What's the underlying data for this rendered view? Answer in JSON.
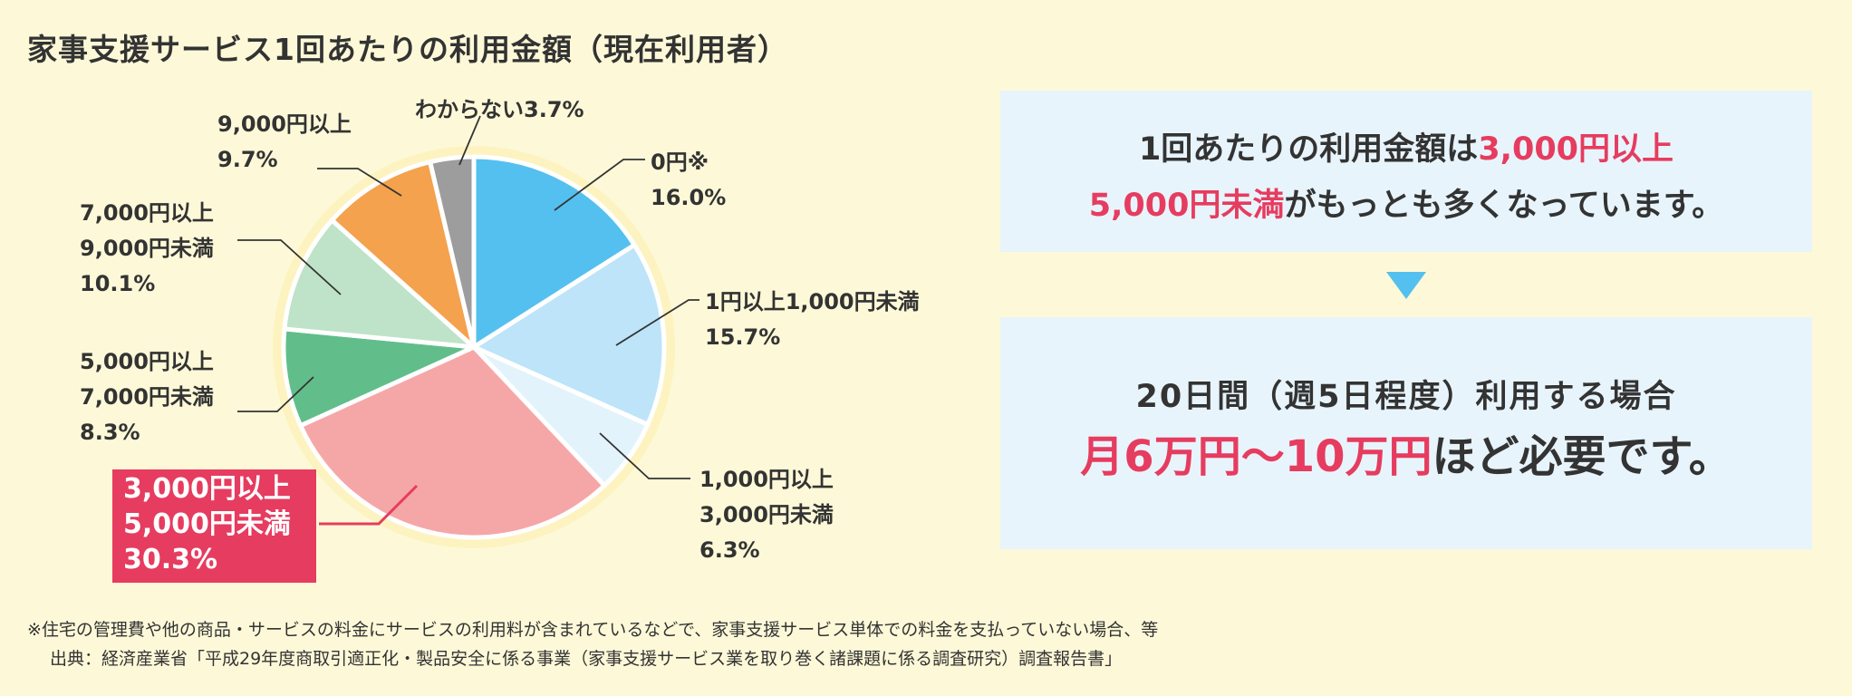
{
  "page": {
    "title": "家事支援サービス1回あたりの利用金額（現在利用者）"
  },
  "chart_data": {
    "type": "pie",
    "title": "家事支援サービス1回あたりの利用金額（現在利用者）",
    "start_angle_deg": 0,
    "direction": "clockwise",
    "slices": [
      {
        "label_lines": [
          "0円※",
          "16.0%"
        ],
        "value": 16.0,
        "color": "#54c0ef"
      },
      {
        "label_lines": [
          "1円以上1,000円未満",
          "15.7%"
        ],
        "value": 15.7,
        "color": "#bde4f8"
      },
      {
        "label_lines": [
          "1,000円以上",
          "3,000円未満",
          "6.3%"
        ],
        "value": 6.3,
        "color": "#e3f3fc"
      },
      {
        "label_lines": [
          "3,000円以上",
          "5,000円未満",
          "30.3%"
        ],
        "value": 30.3,
        "color": "#f5a7a7",
        "highlight": true
      },
      {
        "label_lines": [
          "5,000円以上",
          "7,000円未満",
          "8.3%"
        ],
        "value": 8.3,
        "color": "#61be8a"
      },
      {
        "label_lines": [
          "7,000円以上",
          "9,000円未満",
          "10.1%"
        ],
        "value": 10.1,
        "color": "#bfe3c8"
      },
      {
        "label_lines": [
          "9,000円以上",
          "9.7%"
        ],
        "value": 9.7,
        "color": "#f4a24e"
      },
      {
        "label_lines": [
          "わからない3.7%"
        ],
        "value": 3.7,
        "color": "#9d9d9d"
      }
    ],
    "highlight_color": "#e63c5f"
  },
  "panel_top": {
    "line1_pre": "1回あたりの利用金額は",
    "line1_accent": "3,000円以上",
    "line2_accent": "5,000円未満",
    "line2_post": "がもっとも多くなっています。"
  },
  "panel_bottom": {
    "line1": "20日間（週5日程度）利用する場合",
    "line2_accent": "月6万円〜10万円",
    "line2_post": "ほど必要です。"
  },
  "colors": {
    "background": "#fdf9d8",
    "panel": "#e8f4fb",
    "accent": "#e63c5f",
    "arrow": "#54c0ef",
    "text": "#333333"
  },
  "footnote": {
    "note": "※住宅の管理費や他の商品・サービスの料金にサービスの利用料が含まれているなどで、家事支援サービス単体での料金を支払っていない場合、等",
    "source": "出典：経済産業省「平成29年度商取引適正化・製品安全に係る事業（家事支援サービス業を取り巻く諸課題に係る調査研究）調査報告書」"
  }
}
